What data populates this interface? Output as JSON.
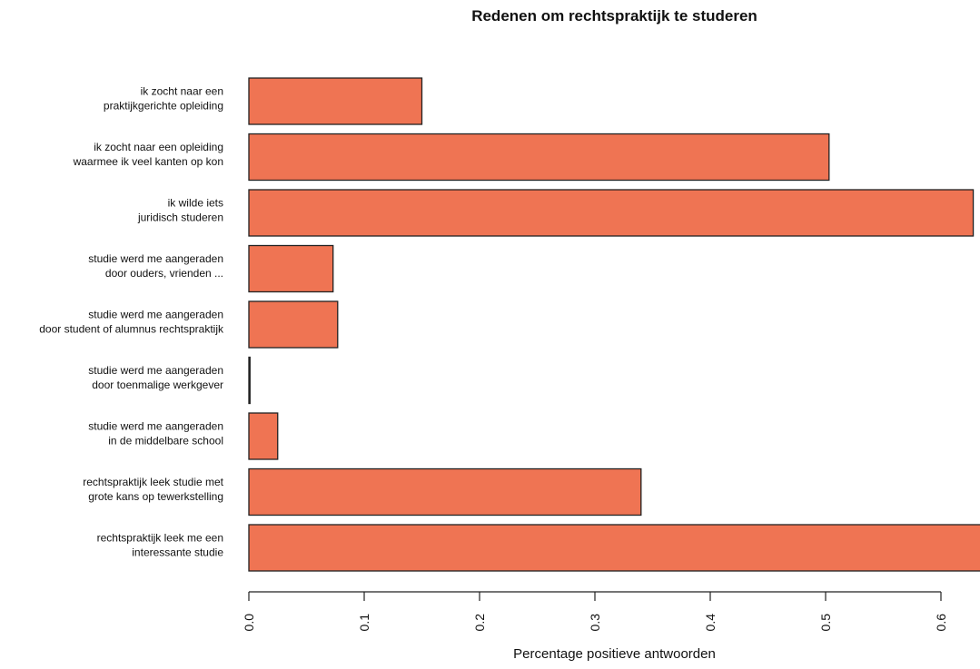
{
  "chart_data": {
    "type": "bar",
    "orientation": "horizontal",
    "title": "Redenen om rechtspraktijk te studeren",
    "xlabel": "Percentage positieve antwoorden",
    "ylabel": "",
    "xlim": [
      0,
      0.635
    ],
    "xticks": [
      "0.0",
      "0.1",
      "0.2",
      "0.3",
      "0.4",
      "0.5",
      "0.6"
    ],
    "grid": false,
    "bar_color": "#ef7453",
    "categories": [
      [
        "ik zocht naar een",
        "praktijkgerichte opleiding"
      ],
      [
        "ik zocht naar een opleiding",
        "waarmee ik veel kanten op kon"
      ],
      [
        "ik wilde iets",
        "juridisch studeren"
      ],
      [
        "studie werd me aangeraden",
        "door ouders, vrienden ..."
      ],
      [
        "studie werd me aangeraden",
        "door student of alumnus rechtspraktijk"
      ],
      [
        "studie werd me aangeraden",
        "door toenmalige werkgever"
      ],
      [
        "studie werd me aangeraden",
        "in de middelbare school"
      ],
      [
        "rechtspraktijk leek studie met",
        "grote kans op tewerkstelling"
      ],
      [
        "rechtspraktijk leek me een",
        "interessante studie"
      ]
    ],
    "values": [
      0.15,
      0.503,
      0.628,
      0.073,
      0.077,
      0.001,
      0.025,
      0.34,
      0.66
    ]
  }
}
